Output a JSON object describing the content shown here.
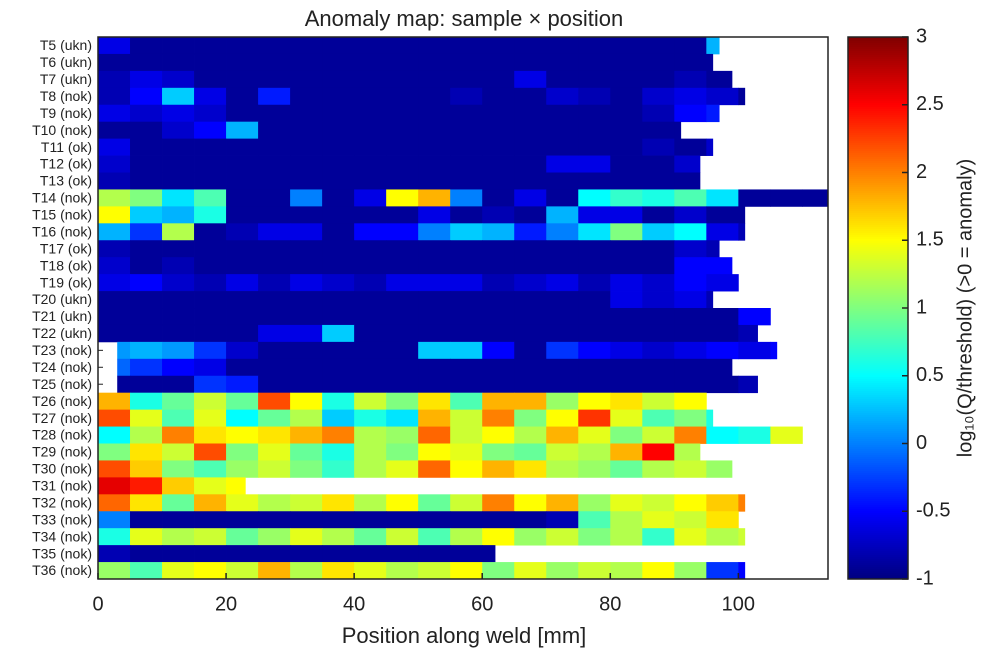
{
  "chart_data": {
    "type": "heatmap",
    "colormap": "jet",
    "title": "Anomaly map: sample × position",
    "xlabel": "Position along weld [mm]",
    "xlim": [
      0,
      114
    ],
    "xticks": [
      0,
      20,
      40,
      60,
      80,
      100
    ],
    "bins": [
      0,
      5,
      10,
      15,
      20,
      25,
      30,
      35,
      40,
      45,
      50,
      55,
      60,
      65,
      70,
      75,
      80,
      85,
      90,
      95,
      100,
      105,
      110,
      115
    ],
    "rows": [
      {
        "label": "T5 (ukn)",
        "start": 0,
        "end": 97,
        "values": [
          -0.6,
          -0.9,
          -0.9,
          -0.9,
          -0.9,
          -0.9,
          -0.9,
          -0.9,
          -0.9,
          -0.9,
          -0.9,
          -0.9,
          -0.9,
          -0.9,
          -0.9,
          -0.9,
          -0.9,
          -0.9,
          -0.9,
          0.2
        ]
      },
      {
        "label": "T6 (ukn)",
        "start": 0,
        "end": 96,
        "values": [
          -0.9,
          -0.9,
          -0.9,
          -0.9,
          -0.9,
          -0.9,
          -0.9,
          -0.9,
          -0.9,
          -0.9,
          -0.9,
          -0.9,
          -0.9,
          -0.9,
          -0.9,
          -0.9,
          -0.9,
          -0.9,
          -0.9,
          -0.9
        ]
      },
      {
        "label": "T7 (ukn)",
        "start": 0,
        "end": 99,
        "values": [
          -0.8,
          -0.6,
          -0.7,
          -0.9,
          -0.9,
          -0.9,
          -0.9,
          -0.9,
          -0.9,
          -0.9,
          -0.9,
          -0.9,
          -0.9,
          -0.6,
          -0.9,
          -0.9,
          -0.9,
          -0.9,
          -0.8,
          -0.9
        ]
      },
      {
        "label": "T8 (nok)",
        "start": 0,
        "end": 101,
        "values": [
          -0.8,
          -0.5,
          0.3,
          -0.6,
          -0.9,
          -0.4,
          -0.9,
          -0.9,
          -0.9,
          -0.9,
          -0.9,
          -0.8,
          -0.9,
          -0.9,
          -0.7,
          -0.8,
          -0.9,
          -0.7,
          -0.6,
          -0.7,
          -0.9
        ]
      },
      {
        "label": "T9 (nok)",
        "start": 0,
        "end": 97,
        "values": [
          -0.6,
          -0.7,
          -0.6,
          -0.7,
          -0.9,
          -0.9,
          -0.9,
          -0.9,
          -0.9,
          -0.9,
          -0.9,
          -0.9,
          -0.9,
          -0.9,
          -0.9,
          -0.9,
          -0.9,
          -0.8,
          -0.5,
          -0.4
        ]
      },
      {
        "label": "T10 (nok)",
        "start": 0,
        "end": 91,
        "values": [
          -0.9,
          -0.9,
          -0.7,
          -0.5,
          0.2,
          -0.9,
          -0.9,
          -0.9,
          -0.9,
          -0.9,
          -0.9,
          -0.9,
          -0.9,
          -0.9,
          -0.9,
          -0.9,
          -0.9,
          -0.9,
          -0.9
        ]
      },
      {
        "label": "T11 (ok)",
        "start": 0,
        "end": 96,
        "values": [
          -0.6,
          -0.9,
          -0.9,
          -0.9,
          -0.9,
          -0.9,
          -0.9,
          -0.9,
          -0.9,
          -0.9,
          -0.9,
          -0.9,
          -0.9,
          -0.9,
          -0.9,
          -0.9,
          -0.9,
          -0.8,
          -0.9,
          -0.7
        ]
      },
      {
        "label": "T12 (ok)",
        "start": 0,
        "end": 94,
        "values": [
          -0.7,
          -0.9,
          -0.9,
          -0.9,
          -0.9,
          -0.9,
          -0.9,
          -0.9,
          -0.9,
          -0.9,
          -0.9,
          -0.9,
          -0.9,
          -0.9,
          -0.6,
          -0.6,
          -0.9,
          -0.9,
          -0.7
        ]
      },
      {
        "label": "T13 (ok)",
        "start": 0,
        "end": 94,
        "values": [
          -0.8,
          -0.9,
          -0.9,
          -0.9,
          -0.9,
          -0.9,
          -0.9,
          -0.9,
          -0.9,
          -0.9,
          -0.9,
          -0.9,
          -0.9,
          -0.9,
          -0.9,
          -0.9,
          -0.9,
          -0.9,
          -0.9
        ]
      },
      {
        "label": "T14 (nok)",
        "start": 0,
        "end": 114,
        "values": [
          1.2,
          1.0,
          0.4,
          0.8,
          -0.9,
          -0.9,
          0.0,
          -0.9,
          -0.6,
          1.5,
          1.8,
          0.0,
          -0.9,
          -0.6,
          -0.9,
          0.5,
          0.7,
          0.6,
          0.8,
          0.4,
          -0.9,
          -0.9,
          -0.9
        ]
      },
      {
        "label": "T15 (nok)",
        "start": 0,
        "end": 101,
        "values": [
          1.5,
          0.3,
          0.2,
          0.6,
          -0.9,
          -0.9,
          -0.9,
          -0.9,
          -0.9,
          -0.9,
          -0.6,
          -0.9,
          -0.8,
          -0.9,
          0.2,
          -0.6,
          -0.6,
          -0.9,
          -0.7,
          -0.9,
          -0.9
        ]
      },
      {
        "label": "T16 (nok)",
        "start": 0,
        "end": 101,
        "values": [
          0.2,
          -0.3,
          1.2,
          -0.9,
          -0.8,
          -0.6,
          -0.6,
          -0.9,
          -0.5,
          -0.5,
          0.0,
          0.3,
          0.2,
          -0.4,
          0.0,
          0.4,
          1.0,
          0.3,
          0.5,
          -0.6,
          -0.8
        ]
      },
      {
        "label": "T17 (ok)",
        "start": 0,
        "end": 97,
        "values": [
          -0.8,
          -0.9,
          -0.9,
          -0.9,
          -0.9,
          -0.9,
          -0.9,
          -0.9,
          -0.9,
          -0.9,
          -0.9,
          -0.9,
          -0.9,
          -0.9,
          -0.9,
          -0.9,
          -0.9,
          -0.9,
          -0.7,
          -0.8
        ]
      },
      {
        "label": "T18 (ok)",
        "start": 0,
        "end": 99,
        "values": [
          -0.7,
          -0.9,
          -0.8,
          -0.9,
          -0.9,
          -0.9,
          -0.9,
          -0.9,
          -0.9,
          -0.9,
          -0.9,
          -0.9,
          -0.9,
          -0.9,
          -0.9,
          -0.9,
          -0.9,
          -0.9,
          -0.5,
          -0.5
        ]
      },
      {
        "label": "T19 (ok)",
        "start": 0,
        "end": 100,
        "values": [
          -0.6,
          -0.5,
          -0.7,
          -0.8,
          -0.6,
          -0.8,
          -0.6,
          -0.7,
          -0.8,
          -0.6,
          -0.6,
          -0.6,
          -0.8,
          -0.7,
          -0.6,
          -0.8,
          -0.6,
          -0.7,
          -0.5,
          -0.6
        ]
      },
      {
        "label": "T20 (ukn)",
        "start": 0,
        "end": 96,
        "values": [
          -0.9,
          -0.9,
          -0.9,
          -0.9,
          -0.9,
          -0.9,
          -0.9,
          -0.9,
          -0.9,
          -0.9,
          -0.9,
          -0.9,
          -0.9,
          -0.9,
          -0.9,
          -0.9,
          -0.6,
          -0.7,
          -0.6,
          -0.8
        ]
      },
      {
        "label": "T21 (ukn)",
        "start": 0,
        "end": 105,
        "values": [
          -0.9,
          -0.9,
          -0.9,
          -0.9,
          -0.9,
          -0.9,
          -0.9,
          -0.9,
          -0.9,
          -0.9,
          -0.9,
          -0.9,
          -0.9,
          -0.9,
          -0.9,
          -0.9,
          -0.9,
          -0.9,
          -0.9,
          -0.9,
          -0.5
        ]
      },
      {
        "label": "T22 (ukn)",
        "start": 0,
        "end": 103,
        "values": [
          -0.9,
          -0.9,
          -0.9,
          -0.9,
          -0.9,
          -0.6,
          -0.6,
          0.3,
          -0.9,
          -0.9,
          -0.9,
          -0.9,
          -0.9,
          -0.9,
          -0.9,
          -0.9,
          -0.9,
          -0.9,
          -0.9,
          -0.9,
          -0.8
        ]
      },
      {
        "label": "T23 (nok)",
        "start": 3,
        "end": 106,
        "values": [
          0.1,
          0.2,
          0.1,
          -0.3,
          -0.7,
          -0.9,
          -0.9,
          -0.9,
          -0.9,
          -0.9,
          0.3,
          0.3,
          -0.5,
          -0.9,
          -0.3,
          -0.5,
          -0.6,
          -0.7,
          -0.6,
          -0.5,
          -0.6,
          -0.5
        ]
      },
      {
        "label": "T24 (nok)",
        "start": 3,
        "end": 99,
        "values": [
          -0.1,
          -0.3,
          -0.5,
          -0.6,
          -0.9,
          -0.9,
          -0.9,
          -0.9,
          -0.9,
          -0.9,
          -0.9,
          -0.9,
          -0.9,
          -0.9,
          -0.9,
          -0.9,
          -0.9,
          -0.9,
          -0.9,
          -0.9
        ]
      },
      {
        "label": "T25 (nok)",
        "start": 3,
        "end": 103,
        "values": [
          -0.9,
          -0.9,
          -0.9,
          -0.3,
          -0.4,
          -0.9,
          -0.9,
          -0.9,
          -0.9,
          -0.9,
          -0.9,
          -0.9,
          -0.9,
          -0.9,
          -0.9,
          -0.9,
          -0.9,
          -0.9,
          -0.9,
          -0.9,
          -0.8
        ]
      },
      {
        "label": "T26 (nok)",
        "start": 0,
        "end": 95,
        "values": [
          1.8,
          0.6,
          0.9,
          1.3,
          0.9,
          2.2,
          1.5,
          0.6,
          1.3,
          1.0,
          1.6,
          0.8,
          1.8,
          1.8,
          1.1,
          1.5,
          1.6,
          1.3,
          1.5
        ]
      },
      {
        "label": "T27 (nok)",
        "start": 0,
        "end": 96,
        "values": [
          2.2,
          1.4,
          0.8,
          1.4,
          0.5,
          0.9,
          1.2,
          0.3,
          0.6,
          0.4,
          1.8,
          1.3,
          2.0,
          1.0,
          1.5,
          2.3,
          1.4,
          0.8,
          1.0,
          0.6
        ]
      },
      {
        "label": "T28 (nok)",
        "start": 0,
        "end": 110,
        "values": [
          0.5,
          1.2,
          2.0,
          1.6,
          1.5,
          1.6,
          1.8,
          2.0,
          1.2,
          1.1,
          2.1,
          1.3,
          1.5,
          1.2,
          1.8,
          1.4,
          1.0,
          1.3,
          2.0,
          0.5,
          0.6,
          1.4
        ]
      },
      {
        "label": "T29 (nok)",
        "start": 0,
        "end": 94,
        "values": [
          1.0,
          1.6,
          1.3,
          2.2,
          1.0,
          1.4,
          0.9,
          0.6,
          1.2,
          1.0,
          1.5,
          1.4,
          1.0,
          0.9,
          1.3,
          1.2,
          1.8,
          2.5,
          1.2
        ]
      },
      {
        "label": "T30 (nok)",
        "start": 0,
        "end": 99,
        "values": [
          2.2,
          1.7,
          1.0,
          0.8,
          1.1,
          1.3,
          1.0,
          0.7,
          1.2,
          1.4,
          2.1,
          1.5,
          1.8,
          1.6,
          1.2,
          1.1,
          0.9,
          1.2,
          1.3,
          1.1
        ]
      },
      {
        "label": "T31 (nok)",
        "start": 0,
        "end": 23,
        "values": [
          2.6,
          2.4,
          1.7,
          1.4,
          1.5
        ]
      },
      {
        "label": "T32 (nok)",
        "start": 0,
        "end": 101,
        "values": [
          2.1,
          1.6,
          0.9,
          1.8,
          1.4,
          1.2,
          1.3,
          1.6,
          1.2,
          1.5,
          0.9,
          1.3,
          2.0,
          1.5,
          1.8,
          1.1,
          1.4,
          1.3,
          1.5,
          1.7,
          2.0
        ]
      },
      {
        "label": "T33 (nok)",
        "start": 0,
        "end": 100,
        "values": [
          0.0,
          -0.9,
          -0.9,
          -0.9,
          -0.9,
          -0.9,
          -0.9,
          -0.9,
          -0.9,
          -0.9,
          -0.9,
          -0.9,
          -0.9,
          -0.9,
          -0.8,
          0.8,
          1.2,
          1.4,
          1.3,
          1.6
        ]
      },
      {
        "label": "T34 (nok)",
        "start": 0,
        "end": 101,
        "values": [
          0.6,
          1.4,
          1.2,
          1.3,
          0.9,
          1.1,
          1.4,
          1.2,
          0.9,
          1.3,
          0.8,
          1.2,
          1.5,
          1.1,
          1.3,
          1.0,
          1.2,
          0.7,
          1.4,
          1.2,
          1.3
        ]
      },
      {
        "label": "T35 (nok)",
        "start": 0,
        "end": 62,
        "values": [
          -0.8,
          -0.9,
          -0.9,
          -0.9,
          -0.9,
          -0.9,
          -0.9,
          -0.9,
          -0.9,
          -0.9,
          -0.9,
          -0.9,
          -0.9
        ]
      },
      {
        "label": "T36 (nok)",
        "start": 0,
        "end": 101,
        "values": [
          1.1,
          0.8,
          1.4,
          1.5,
          1.3,
          1.8,
          1.2,
          1.6,
          1.4,
          1.2,
          1.3,
          1.5,
          1.0,
          1.4,
          1.1,
          1.3,
          1.2,
          1.5,
          1.1,
          -0.3,
          -0.5
        ]
      }
    ],
    "colorbar": {
      "label": "log₁₀(Q/threshold)   (>0 = anomaly)",
      "clim": [
        -1,
        3
      ],
      "ticks": [
        -1,
        -0.5,
        0,
        0.5,
        1,
        1.5,
        2,
        2.5,
        3
      ]
    }
  }
}
